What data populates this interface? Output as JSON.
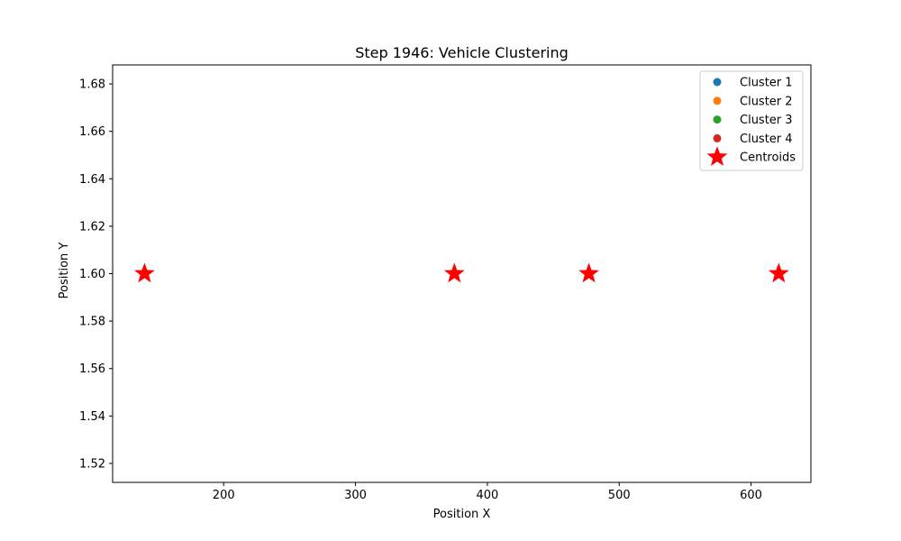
{
  "chart_data": {
    "type": "scatter",
    "title": "Step 1946: Vehicle Clustering",
    "xlabel": "Position X",
    "ylabel": "Position Y",
    "xlim": [
      115.8,
      645.4
    ],
    "ylim": [
      1.512,
      1.688
    ],
    "x_ticks": [
      200,
      300,
      400,
      500,
      600
    ],
    "y_ticks": [
      1.52,
      1.54,
      1.56,
      1.58,
      1.6,
      1.62,
      1.64,
      1.66,
      1.68
    ],
    "x_tick_labels": [
      "200",
      "300",
      "400",
      "500",
      "600"
    ],
    "y_tick_labels": [
      "1.52",
      "1.54",
      "1.56",
      "1.58",
      "1.60",
      "1.62",
      "1.64",
      "1.66",
      "1.68"
    ],
    "grid": false,
    "legend_position": "top-right",
    "series": [
      {
        "name": "Cluster 1",
        "marker": "circle",
        "color": "#1f77b4",
        "points": []
      },
      {
        "name": "Cluster 2",
        "marker": "circle",
        "color": "#ff7f0e",
        "points": []
      },
      {
        "name": "Cluster 3",
        "marker": "circle",
        "color": "#2ca02c",
        "points": []
      },
      {
        "name": "Cluster 4",
        "marker": "circle",
        "color": "#d62728",
        "points": []
      },
      {
        "name": "Centroids",
        "marker": "star",
        "color": "#ff0000",
        "points": [
          {
            "x": 140,
            "y": 1.6
          },
          {
            "x": 375,
            "y": 1.6
          },
          {
            "x": 477,
            "y": 1.6
          },
          {
            "x": 621,
            "y": 1.6
          }
        ]
      }
    ]
  }
}
